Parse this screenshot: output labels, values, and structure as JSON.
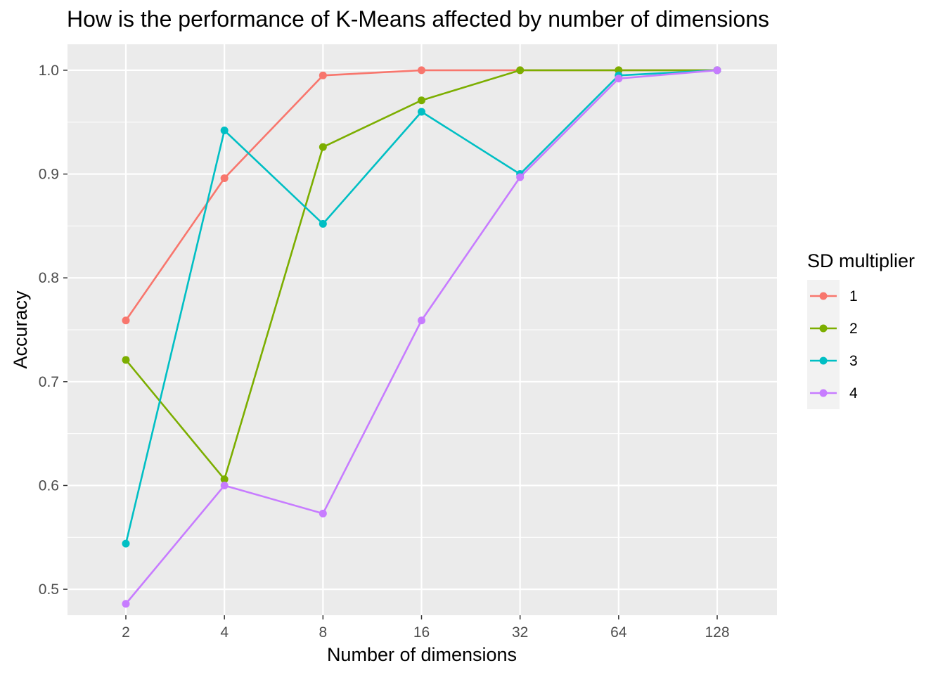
{
  "chart_data": {
    "type": "line",
    "title": "How is the performance of K-Means affected by number of dimensions",
    "xlabel": "Number of dimensions",
    "ylabel": "Accuracy",
    "x_scale": "log2",
    "categories": [
      "2",
      "4",
      "8",
      "16",
      "32",
      "64",
      "128"
    ],
    "x": [
      2,
      4,
      8,
      16,
      32,
      64,
      128
    ],
    "ylim": [
      0.475,
      1.025
    ],
    "yticks": [
      "0.5",
      "0.6",
      "0.7",
      "0.8",
      "0.9",
      "1.0"
    ],
    "grid": true,
    "legend": {
      "title": "SD multiplier",
      "position": "right"
    },
    "series": [
      {
        "name": "1",
        "color": "#F8766D",
        "values": [
          0.759,
          0.896,
          0.995,
          1.0,
          1.0,
          1.0,
          1.0
        ]
      },
      {
        "name": "2",
        "color": "#7CAE00",
        "values": [
          0.721,
          0.606,
          0.926,
          0.971,
          1.0,
          1.0,
          1.0
        ]
      },
      {
        "name": "3",
        "color": "#00BFC4",
        "values": [
          0.544,
          0.942,
          0.852,
          0.96,
          0.9,
          0.995,
          1.0
        ]
      },
      {
        "name": "4",
        "color": "#C77CFF",
        "values": [
          0.486,
          0.6,
          0.573,
          0.759,
          0.897,
          0.992,
          1.0
        ]
      }
    ]
  }
}
